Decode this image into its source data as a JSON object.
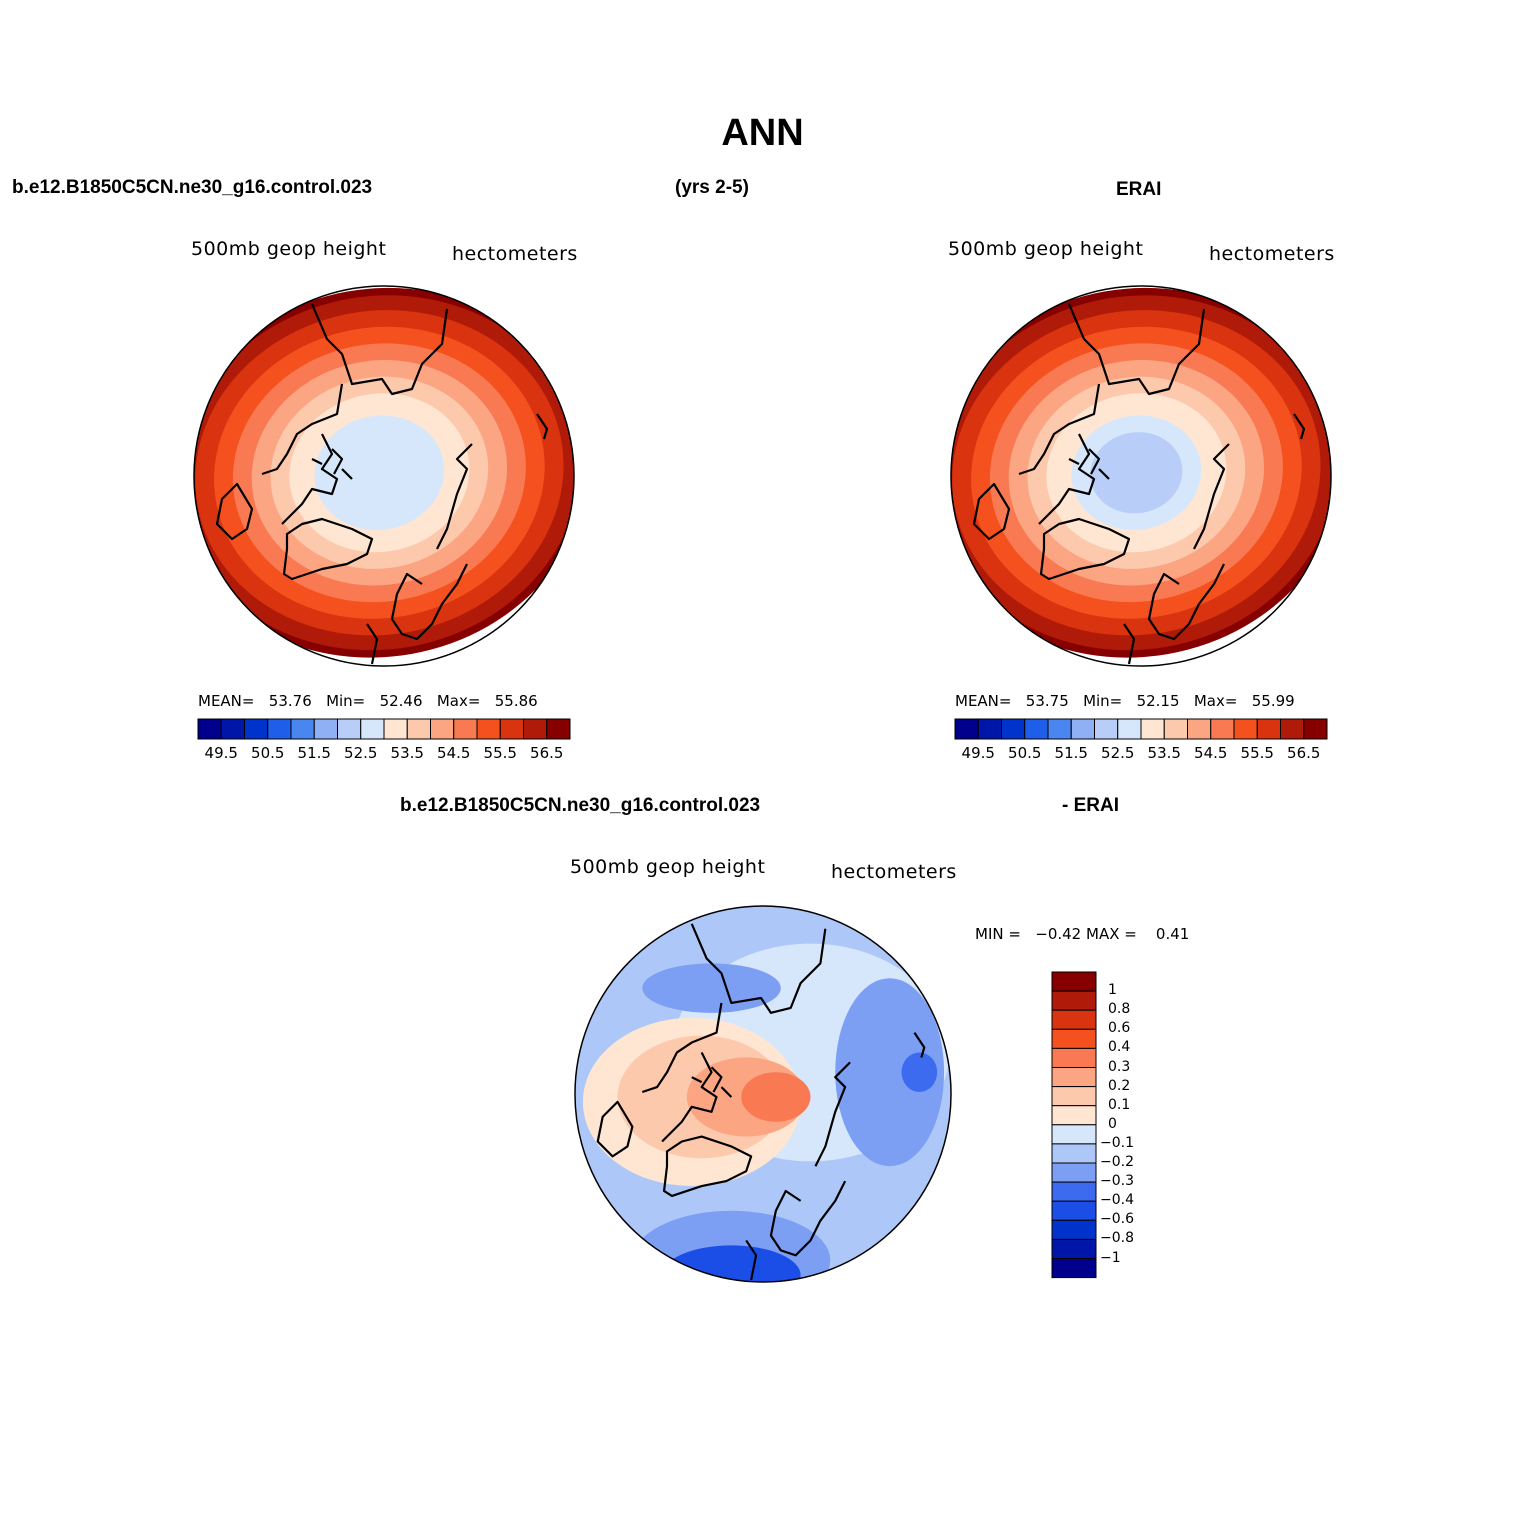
{
  "title": "ANN",
  "header": {
    "case_name": "b.e12.B1850C5CN.ne30_g16.control.023",
    "years": "(yrs 2-5)",
    "obs_name": "ERAI"
  },
  "diff_header": {
    "case_name": "b.e12.B1850C5CN.ne30_g16.control.023",
    "obs_name": "- ERAI"
  },
  "colors": {
    "abs_scale": [
      "#00008c",
      "#0016a8",
      "#0033cc",
      "#1f5ee8",
      "#4a86f0",
      "#8fb0f5",
      "#b8cef8",
      "#d7e7fb",
      "#ffe6d2",
      "#fdc9ac",
      "#fba583",
      "#f97a52",
      "#f4511e",
      "#d9330f",
      "#b01a08",
      "#870000"
    ],
    "diff_scale": [
      "#00008c",
      "#0016a8",
      "#0033cc",
      "#1a4ee6",
      "#3d6bf0",
      "#7c9ff4",
      "#adc8f8",
      "#d7e7fb",
      "#ffe6d2",
      "#fdc9ac",
      "#fba583",
      "#f97a52",
      "#f4511e",
      "#d9330f",
      "#b01a08",
      "#870000"
    ]
  },
  "panels": [
    {
      "id": "model",
      "variable": "500mb geop height",
      "units": "hectometers",
      "stats": {
        "mean_label": "MEAN=",
        "mean": "53.76",
        "min_label": "Min=",
        "min": "52.46",
        "max_label": "Max=",
        "max": "55.86"
      },
      "colorbar_labels": [
        "49.5",
        "50.5",
        "51.5",
        "52.5",
        "53.5",
        "54.5",
        "55.5",
        "56.5"
      ]
    },
    {
      "id": "obs",
      "variable": "500mb geop height",
      "units": "hectometers",
      "stats": {
        "mean_label": "MEAN=",
        "mean": "53.75",
        "min_label": "Min=",
        "min": "52.15",
        "max_label": "Max=",
        "max": "55.99"
      },
      "colorbar_labels": [
        "49.5",
        "50.5",
        "51.5",
        "52.5",
        "53.5",
        "54.5",
        "55.5",
        "56.5"
      ]
    }
  ],
  "diff_panel": {
    "variable": "500mb geop height",
    "units": "hectometers",
    "stats": {
      "min_label": "MIN =",
      "min": "−0.42",
      "max_label": "MAX =",
      "max": "0.41"
    },
    "colorbar_labels": [
      "1",
      "0.8",
      "0.6",
      "0.4",
      "0.3",
      "0.2",
      "0.1",
      "0",
      "−0.1",
      "−0.2",
      "−0.3",
      "−0.4",
      "−0.6",
      "−0.8",
      "−1"
    ]
  }
}
